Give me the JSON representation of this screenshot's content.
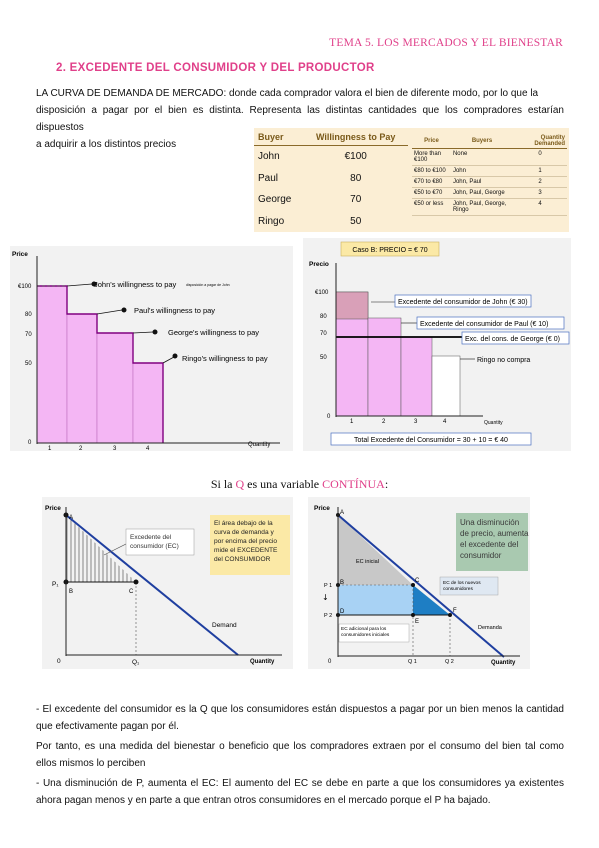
{
  "header": "TEMA 5. LOS MERCADOS Y EL BIENESTAR",
  "section_title": "2.  EXCEDENTE DEL CONSUMIDOR Y DEL PRODUCTOR",
  "intro_lines": [
    "LA CURVA DE DEMANDA DE MERCADO: donde cada comprador valora el bien de diferente modo, por lo que la",
    "disposición a pagar por el bien es distinta. Representa las distintas cantidades que los compradores estarían dispuestos",
    "a adquirir a los distintos precios"
  ],
  "wtp_table": {
    "headers": [
      "Buyer",
      "Willingness to Pay"
    ],
    "rows": [
      [
        "John",
        "€100"
      ],
      [
        "Paul",
        "80"
      ],
      [
        "George",
        "70"
      ],
      [
        "Ringo",
        "50"
      ]
    ]
  },
  "demand_table": {
    "headers": [
      "Price",
      "Buyers",
      "Quantity Demanded"
    ],
    "rows": [
      [
        "More than €100",
        "None",
        "0"
      ],
      [
        "€80 to €100",
        "John",
        "1"
      ],
      [
        "€70 to €80",
        "John, Paul",
        "2"
      ],
      [
        "€50 to €70",
        "John, Paul, George",
        "3"
      ],
      [
        "€50 or less",
        "John, Paul, George, Ringo",
        "4"
      ]
    ]
  },
  "step_chart": {
    "ylabel": "Price",
    "xlabel": "Quantity",
    "y_ticks": [
      "€100",
      "80",
      "70",
      "50",
      "0"
    ],
    "x_ticks": [
      "1",
      "2",
      "3",
      "4"
    ],
    "labels": [
      "John's willingness to pay",
      "Paul's willingness to pay",
      "George's willingness to pay",
      "Ringo's willingness to pay"
    ],
    "small_note": "disposición a pagar de John"
  },
  "case_chart": {
    "title": "Caso B: PRECIO = € 70",
    "ylabel": "Precio",
    "xlabel": "Quantity",
    "y_ticks": [
      "€100",
      "80",
      "70",
      "50",
      "0"
    ],
    "x_ticks": [
      "1",
      "2",
      "3",
      "4"
    ],
    "labels": [
      "Excedente del consumidor de John (€ 30)",
      "Excedente del consumidor de Paul (€ 10)",
      "Exc. del cons. de George (€ 0)",
      "Ringo no compra"
    ],
    "total": "Total Excedente del Consumidor = 30 + 10 = € 40"
  },
  "continuous": {
    "prefix": "Si la ",
    "q": "Q",
    "middle": " es una variable ",
    "word": "CONTÍNUA",
    "suffix": ":"
  },
  "chart_c1": {
    "ylabel": "Price",
    "xlabel": "Quantity",
    "point_a": "A",
    "point_b": "B",
    "point_c": "C",
    "p1": "P₁",
    "q1": "Q₁",
    "origin": "0",
    "cs_label": "Excedente del consumidor (EC)",
    "demand": "Demand",
    "note": "El área debajo de la curva de demanda y por encima del precio mide el EXCEDENTE del CONSUMIDOR"
  },
  "chart_c2": {
    "ylabel": "Price",
    "xlabel": "Quantity",
    "points": [
      "A",
      "B",
      "C",
      "D",
      "E",
      "F"
    ],
    "p1": "P 1",
    "p2": "P 2",
    "q1": "Q 1",
    "q2": "Q 2",
    "origin": "0",
    "ec_initial": "EC inicial",
    "ec_new": "EC de los nuevos consumidores",
    "ec_add": "EC adicional para los consumidores iniciales",
    "demand": "Demanda",
    "note": "Una disminución de precio, aumenta el excedente del consumidor"
  },
  "paragraphs": [
    "- El excedente del consumidor es la Q que los consumidores están dispuestos a pagar por un bien menos la cantidad que efectivamente pagan por él.",
    "Por tanto, es una medida del bienestar o beneficio que los compradores extraen por el consumo del bien tal como ellos mismos lo perciben",
    "- Una disminución de P, aumenta el EC: El aumento del EC se debe en parte a que los consumidores ya existentes ahora pagan menos y en parte a que entran otros consumidores en el mercado porque el P ha bajado."
  ],
  "colors": {
    "pink": "#e0408a",
    "bar": "#f4b6f4",
    "navy": "#1f3fa0"
  }
}
